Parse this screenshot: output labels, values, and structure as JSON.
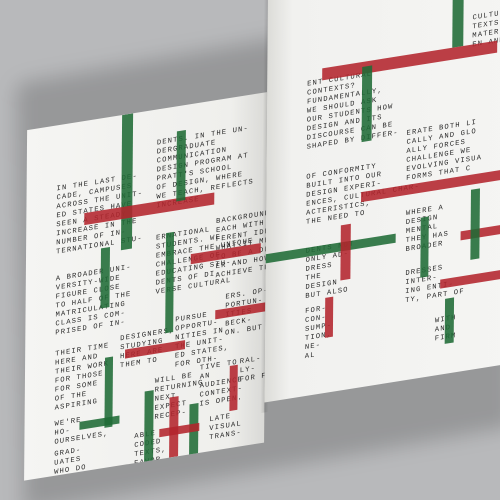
{
  "colors": {
    "green": "#1f6b35",
    "red": "#b3242c",
    "paper": "#f3f3f1",
    "background": "#b8b9bb"
  },
  "left_page": {
    "col1_block1": "IN THE LAST DE-\nCADE, CAMPUSES\nACROSS THE UNIT-\nED STATES HAVE\nSEEN A STEADY\nINCREASE IN THE\nNUMBER OF IN-\nTERNATIONAL STU-",
    "col1_block2": "A BROADER UNI-\nVERSITY-WIDE\nFIGURE CLOSE\nTO HALF OF THE\nMATRICULATING\nCLASS IS COM-\nPRISED OF IN-",
    "col1_block3": "THEIR TIME\nHERE AND\nTHEIR WORK\nFOR THOSE\nFOR SOME\nOF THE\nASPIRING",
    "col1_block4": "WE'RE\nHO-\nOURSELVES,",
    "col1_block5": "GRAD-\nUATES\nWHO DO\nNOR OR",
    "col2_block1": "DENTS. IN THE UN-\nDERGRADUATE\nCOMMUNICATION\nDESIGN PROGRAM AT\nPRATT'S SCHOOL\nOF DESIGN, WHERE\nWE TEACH, REFLECTS\nINCREASE",
    "col2_block2": "ERNATIONAL\nSTUDENTS. WE\nEMBRACE THE UNIQUE\nCHALLENGE OF\nEDUCATING STU-\nDENTS OF DI-\nVERSE CULTURAL",
    "col2_block3": "BACKGROUNDS,\nEACH WITH A DIF-\nFERENT IDEA OF\nWHAT IT MEANS\nTO BE A DESIGN-\nER AND HOW TO\nACHIEVE THAT IN",
    "col2_block4": "DESIGNERS,\nSTUDYING\nHERE ARE\nTHEM TO",
    "col2_block5": "PURSUE\nOPPORTU-\nNITIES IN\nTHE UNIT-\nED STATES,\nFOR OTH-",
    "col2_block6": "WILL BE\nRETURNING\nNEXT\nEXPECT\nRECEP-",
    "col2_block7": "TIVE TO\nAN\nAUDIENCE\nCONTEXT-\nIS OPEN.",
    "col2_block8": "LATE\nVISUAL\nTRANS-",
    "col2_block9": "ABLE\nCODED\nTEXTS,\nFAVOR",
    "col2_block10": "ERS. OP-\nPORTUN-\nITIES\nBECK-\nON. BUT IF",
    "col2_block11": "RAL-\nLY-\nFOR FER-"
  },
  "right_page": {
    "col1_block1": "ENT CULTURAL\nCONTEXTS?\nFUNDAMENTALLY,\nWE SHOULD ASK\nOUR STUDENTS HOW\nDESIGN AND ITS\nDISCOURSE CAN BE\nSHAPED BY DIFFER-",
    "col1_block2": "OF CONFORMITY\nBUILT INTO OUR\nDESIGN EXPERI-\nENCES, CULTURAL CHAR-\nACTERISTICS,\nTHE NEED TO",
    "col1_block3": "DENTS NOT\nONLY AD-\nDRESS\nTHE\nDESIGN\nBUT ALSO",
    "col1_block4": "FOR-\nCON-\nSUMP-\nTION,\nNE-\nAL",
    "col2_block1": "CULTURAL\nTEXTS, C\nMATERIAL\nEN AND",
    "col2_block2": "ERATE BOTH LI\nCALLY AND GLO\nALLY FORCES\nCHALLENGE WE\nEVOLVING VISUA\nFORMS THAT C",
    "col2_block3": "WHERE A\nDESIGN\nMENTAL\nTHEY HAS\nBROADER",
    "col2_block4": "DRESSES\nINTER-\nING ENTI-\nTY, PART OF",
    "col2_block5": "WITH\nAND\nFIRM"
  }
}
